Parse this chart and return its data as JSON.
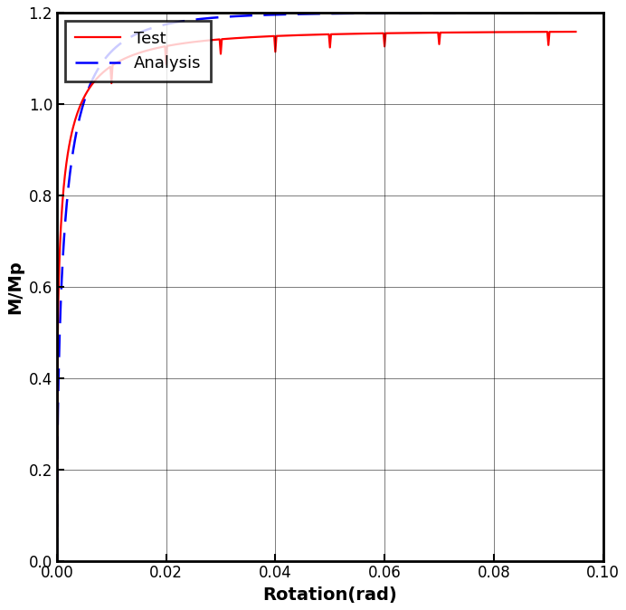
{
  "title": "",
  "xlabel": "Rotation(rad)",
  "ylabel": "M/Mp",
  "xlim": [
    0,
    0.1
  ],
  "ylim": [
    0,
    1.2
  ],
  "xticks": [
    0,
    0.02,
    0.04,
    0.06,
    0.08,
    0.1
  ],
  "yticks": [
    0,
    0.2,
    0.4,
    0.6,
    0.8,
    1.0,
    1.2
  ],
  "test_color": "#FF0000",
  "analysis_color": "#0000FF",
  "test_linewidth": 1.6,
  "analysis_linewidth": 1.8,
  "legend_labels": [
    "Test",
    "Analysis"
  ],
  "grid": true,
  "background_color": "#FFFFFF"
}
